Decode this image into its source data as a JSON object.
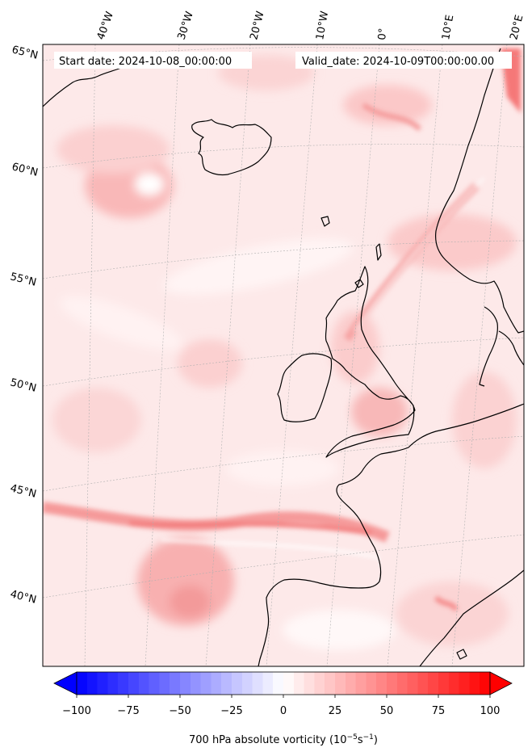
{
  "header": {
    "start_date": "Start date: 2024-10-08_00:00:00",
    "valid_date": "Valid_date: 2024-10-09T00:00:00.00"
  },
  "lon_labels": [
    "40°W",
    "30°W",
    "20°W",
    "10°W",
    "0°",
    "10°E",
    "20°E"
  ],
  "lat_labels": [
    "65°N",
    "60°N",
    "55°N",
    "50°N",
    "45°N",
    "40°N"
  ],
  "colorbar": {
    "min": -100,
    "max": 100,
    "step": 5,
    "ticks": [
      "−100",
      "−75",
      "−50",
      "−25",
      "0",
      "25",
      "50",
      "75",
      "100"
    ],
    "tick_values": [
      -100,
      -75,
      -50,
      -25,
      0,
      25,
      50,
      75,
      100
    ],
    "extend": "both",
    "colormap": "bwr",
    "low_color": "#0000ff",
    "mid_color": "#ffffff",
    "high_color": "#ff0000"
  },
  "colorbar_label": {
    "prefix": "700 hPa absolute vorticity (10",
    "exp1": "−5",
    "mid": "s",
    "exp2": "−1",
    "suffix": ")"
  },
  "map_style": {
    "background": "#fde8e8",
    "coastline_color": "#000000",
    "gridline_color": "#aaaaaa"
  }
}
